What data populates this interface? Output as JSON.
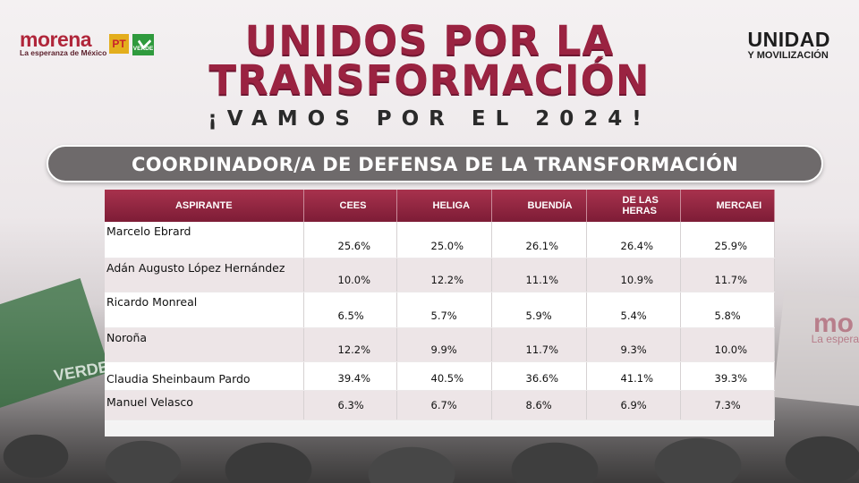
{
  "header": {
    "party_logo": "morena",
    "party_tagline": "La esperanza de México",
    "pt_logo": "PT",
    "verde_logo": "VERDE",
    "right_logo_line1": "UNIDAD",
    "right_logo_line2": "Y MOVILIZACIÓN"
  },
  "title": {
    "line1": "UNIDOS POR LA",
    "line2": "TRANSFORMACIÓN",
    "subtitle": "¡VAMOS POR EL 2024!"
  },
  "banner": "COORDINADOR/A DE DEFENSA DE LA TRANSFORMACIÓN",
  "table": {
    "columns": [
      "ASPIRANTE",
      "CEES",
      "HELIGA",
      "BUENDÍA",
      "DE LAS HERAS",
      "MERCAEI"
    ],
    "rows": [
      {
        "name": "Marcelo Ebrard",
        "values": [
          "25.6%",
          "25.0%",
          "26.1%",
          "26.4%",
          "25.9%"
        ]
      },
      {
        "name": "Adán Augusto López Hernández",
        "values": [
          "10.0%",
          "12.2%",
          "11.1%",
          "10.9%",
          "11.7%"
        ]
      },
      {
        "name": "Ricardo Monreal",
        "values": [
          "6.5%",
          "5.7%",
          "5.9%",
          "5.4%",
          "5.8%"
        ]
      },
      {
        "name": "Noroña",
        "values": [
          "12.2%",
          "9.9%",
          "11.7%",
          "9.3%",
          "10.0%"
        ]
      },
      {
        "name": "Claudia Sheinbaum Pardo",
        "values": [
          "39.4%",
          "40.5%",
          "36.6%",
          "41.1%",
          "39.3%"
        ]
      },
      {
        "name": "Manuel Velasco",
        "values": [
          "6.3%",
          "6.7%",
          "8.6%",
          "6.9%",
          "7.3%"
        ]
      }
    ]
  },
  "background": {
    "left_flag_text": "VERDE",
    "right_flag_text": "mo",
    "right_flag_sub": "La espera"
  },
  "colors": {
    "brand": "#9a2341",
    "header_row": "#8c2540",
    "banner": "#6e6a6b"
  }
}
